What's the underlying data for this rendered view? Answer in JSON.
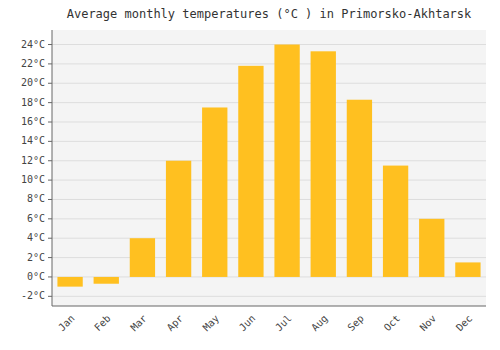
{
  "chart_data": {
    "type": "bar",
    "title": "Average monthly temperatures (°C ) in Primorsko-Akhtarsk",
    "categories": [
      "Jan",
      "Feb",
      "Mar",
      "Apr",
      "May",
      "Jun",
      "Jul",
      "Aug",
      "Sep",
      "Oct",
      "Nov",
      "Dec"
    ],
    "values": [
      -1.0,
      -0.7,
      4.0,
      12.0,
      17.5,
      21.8,
      24.0,
      23.3,
      18.3,
      11.5,
      6.0,
      1.5
    ],
    "color": "#FFC020",
    "ylim": [
      -3.0,
      25.5
    ],
    "yticks": [
      {
        "value": -2,
        "label": "-2°C"
      },
      {
        "value": 0,
        "label": "0°C"
      },
      {
        "value": 2,
        "label": "2°C"
      },
      {
        "value": 4,
        "label": "4°C"
      },
      {
        "value": 6,
        "label": "6°C"
      },
      {
        "value": 8,
        "label": "8°C"
      },
      {
        "value": 10,
        "label": "10°C"
      },
      {
        "value": 12,
        "label": "12°C"
      },
      {
        "value": 14,
        "label": "14°C"
      },
      {
        "value": 16,
        "label": "16°C"
      },
      {
        "value": 18,
        "label": "18°C"
      },
      {
        "value": 20,
        "label": "20°C"
      },
      {
        "value": 22,
        "label": "22°C"
      },
      {
        "value": 24,
        "label": "24°C"
      }
    ],
    "grid": true
  }
}
